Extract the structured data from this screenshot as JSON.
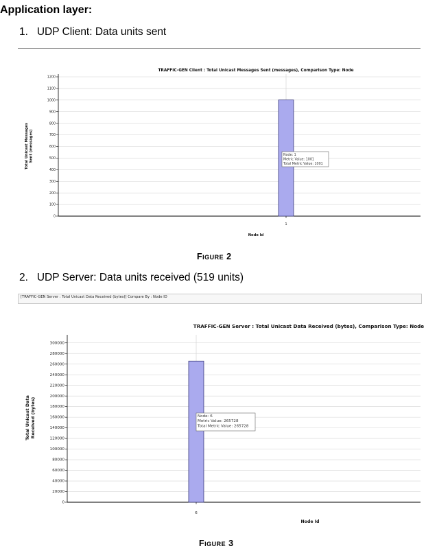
{
  "section": {
    "heading": "Application layer:"
  },
  "items": [
    {
      "number": "1.",
      "text": "UDP Client: Data units sent"
    },
    {
      "number": "2.",
      "text": "UDP Server: Data units received (519 units)"
    }
  ],
  "server_panel_tab": "[TRAFFIC-GEN Server : Total Unicast Data Received (bytes)] Compare By : Node ID",
  "figures": [
    {
      "caption": "Figure 2"
    },
    {
      "caption": "Figure 3"
    }
  ],
  "chart_data": [
    {
      "type": "bar",
      "title": "TRAFFIC-GEN Client : Total Unicast Messages Sent (messages), Comparison Type: Node",
      "xlabel": "Node Id",
      "ylabel": "Total Unicast Messages Sent (messages)",
      "ylabel_lines": [
        "Total Unicast Messages",
        "Sent (messages)"
      ],
      "categories": [
        "1"
      ],
      "values": [
        1001
      ],
      "ylim": [
        0,
        1200
      ],
      "yticks": [
        0,
        100,
        200,
        300,
        400,
        500,
        600,
        700,
        800,
        900,
        1000,
        1100,
        1200
      ],
      "grid": true,
      "bar_color": "#aaaaee",
      "tooltip": [
        "Node: 1",
        "Metric Value: 1001",
        "Total Metric Value: 1001"
      ]
    },
    {
      "type": "bar",
      "title": "TRAFFIC-GEN Server : Total Unicast Data Received (bytes), Comparison Type: Node",
      "xlabel": "Node Id",
      "ylabel": "Total Unicast Data Received (bytes)",
      "ylabel_lines": [
        "Total Unicast Data",
        "Received (bytes)"
      ],
      "categories": [
        "6"
      ],
      "values": [
        265728
      ],
      "ylim": [
        0,
        310000
      ],
      "yticks": [
        0,
        20000,
        40000,
        60000,
        80000,
        100000,
        120000,
        140000,
        160000,
        180000,
        200000,
        220000,
        240000,
        260000,
        280000,
        300000
      ],
      "grid": true,
      "bar_color": "#aaaaee",
      "tooltip": [
        "Node: 6",
        "Metric Value: 265728",
        "Total Metric Value: 265728"
      ]
    }
  ]
}
